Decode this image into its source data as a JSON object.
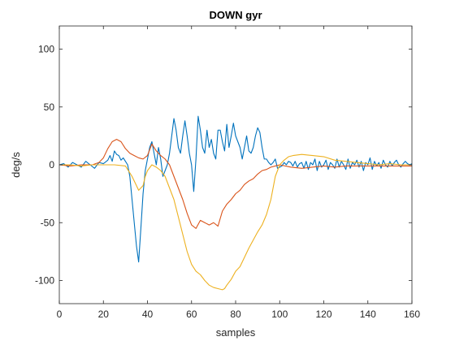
{
  "chart_data": {
    "type": "line",
    "title": "DOWN gyr",
    "xlabel": "samples",
    "ylabel": "deg/s",
    "xlim": [
      0,
      160
    ],
    "ylim": [
      -120,
      120
    ],
    "xticks": [
      0,
      20,
      40,
      60,
      80,
      100,
      120,
      140,
      160
    ],
    "yticks": [
      -100,
      -50,
      0,
      50,
      100
    ],
    "grid": false,
    "series": [
      {
        "color": "#0072BD",
        "x": [
          0,
          2,
          4,
          6,
          8,
          10,
          12,
          14,
          16,
          18,
          20,
          22,
          23,
          24,
          25,
          26,
          27,
          28,
          29,
          30,
          31,
          32,
          33,
          34,
          35,
          36,
          37,
          38,
          39,
          40,
          41,
          42,
          43,
          44,
          45,
          46,
          47,
          48,
          49,
          50,
          51,
          52,
          53,
          54,
          55,
          56,
          57,
          58,
          59,
          60,
          61,
          62,
          63,
          64,
          65,
          66,
          67,
          68,
          69,
          70,
          71,
          72,
          73,
          74,
          75,
          76,
          77,
          78,
          79,
          80,
          81,
          82,
          83,
          84,
          85,
          86,
          87,
          88,
          89,
          90,
          91,
          92,
          93,
          94,
          95,
          96,
          97,
          98,
          99,
          100,
          101,
          102,
          103,
          104,
          105,
          106,
          107,
          108,
          109,
          110,
          111,
          112,
          113,
          114,
          115,
          116,
          117,
          118,
          119,
          120,
          121,
          122,
          123,
          124,
          125,
          126,
          127,
          128,
          129,
          130,
          131,
          132,
          133,
          134,
          135,
          136,
          137,
          138,
          139,
          140,
          141,
          142,
          143,
          144,
          145,
          146,
          147,
          148,
          149,
          150,
          151,
          152,
          153,
          154,
          155,
          156,
          157,
          158,
          159,
          160
        ],
        "y": [
          0,
          1,
          -2,
          2,
          0,
          -2,
          3,
          0,
          -3,
          2,
          1,
          4,
          8,
          3,
          12,
          9,
          8,
          4,
          6,
          3,
          0,
          -10,
          -30,
          -50,
          -70,
          -84,
          -55,
          -25,
          -5,
          5,
          15,
          20,
          10,
          0,
          15,
          5,
          -10,
          -5,
          0,
          10,
          25,
          40,
          30,
          15,
          10,
          25,
          38,
          25,
          10,
          0,
          -23,
          5,
          42,
          30,
          15,
          10,
          30,
          15,
          22,
          10,
          5,
          30,
          30,
          20,
          12,
          35,
          15,
          25,
          36,
          25,
          20,
          15,
          5,
          15,
          25,
          12,
          10,
          15,
          25,
          32,
          28,
          15,
          5,
          5,
          2,
          0,
          2,
          5,
          -3,
          -2,
          -1,
          2,
          0,
          3,
          2,
          -1,
          3,
          -2,
          1,
          2,
          -3,
          3,
          -4,
          2,
          0,
          5,
          -5,
          3,
          -2,
          0,
          4,
          -4,
          2,
          0,
          -3,
          5,
          -2,
          3,
          0,
          -4,
          5,
          -3,
          2,
          0,
          4,
          -2,
          3,
          -5,
          2,
          0,
          6,
          -4,
          3,
          -1,
          2,
          -3,
          4,
          0,
          -2,
          3,
          -1,
          2,
          4,
          0,
          -2,
          1,
          3,
          1,
          0,
          1
        ]
      },
      {
        "color": "#D95319",
        "x": [
          0,
          5,
          10,
          15,
          18,
          20,
          22,
          24,
          26,
          28,
          30,
          32,
          34,
          36,
          38,
          40,
          42,
          44,
          46,
          48,
          50,
          52,
          54,
          56,
          58,
          60,
          62,
          64,
          66,
          68,
          70,
          72,
          74,
          76,
          78,
          80,
          82,
          84,
          86,
          88,
          90,
          92,
          94,
          96,
          98,
          100,
          105,
          110,
          115,
          120,
          125,
          130,
          135,
          140,
          145,
          150,
          155,
          160
        ],
        "y": [
          0,
          -1,
          0,
          0,
          2,
          6,
          14,
          20,
          22,
          20,
          14,
          10,
          8,
          6,
          5,
          8,
          18,
          12,
          8,
          5,
          0,
          -10,
          -20,
          -30,
          -42,
          -52,
          -55,
          -48,
          -50,
          -52,
          -50,
          -53,
          -40,
          -34,
          -30,
          -25,
          -22,
          -17,
          -14,
          -12,
          -8,
          -5,
          -4,
          -2,
          -1,
          0,
          -2,
          -3,
          -2,
          -1,
          -2,
          -1,
          -1,
          -1,
          -1,
          -1,
          -1,
          -1
        ]
      },
      {
        "color": "#EDB120",
        "x": [
          0,
          5,
          10,
          15,
          20,
          25,
          30,
          33,
          35,
          36,
          38,
          39,
          40,
          42,
          44,
          46,
          48,
          50,
          52,
          54,
          56,
          58,
          60,
          62,
          64,
          66,
          68,
          70,
          72,
          74,
          75,
          76,
          78,
          80,
          82,
          84,
          86,
          88,
          90,
          92,
          94,
          96,
          98,
          100,
          102,
          104,
          106,
          110,
          115,
          120,
          125,
          130,
          135,
          140,
          145,
          150,
          155,
          160
        ],
        "y": [
          0,
          0,
          -1,
          0,
          0,
          0,
          -1,
          -10,
          -18,
          -22,
          -18,
          -10,
          -5,
          0,
          -2,
          -5,
          -10,
          -20,
          -30,
          -45,
          -60,
          -75,
          -86,
          -92,
          -95,
          -100,
          -104,
          -106,
          -107,
          -108,
          -107,
          -104,
          -99,
          -92,
          -88,
          -80,
          -72,
          -65,
          -58,
          -52,
          -43,
          -30,
          -10,
          0,
          4,
          7,
          8,
          9,
          8,
          7,
          4,
          3,
          2,
          1,
          0,
          1,
          0,
          0
        ]
      }
    ]
  }
}
